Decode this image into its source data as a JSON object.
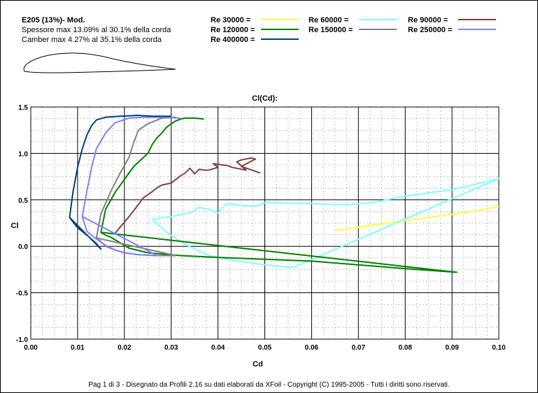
{
  "header": {
    "title": "E205  (13%)- Mod.",
    "thickness": "Spessore max 13.09% al 30.1% della corda",
    "camber": "Camber max 4.27% al 35.1% della corda"
  },
  "footer": "Pag 1 di 3  -   Disegnato da Profili 2.16 su dati elaborati da XFoil - Copyright (C) 1995-2005 - Tutti i diritti sono riservati.",
  "chart_data": {
    "type": "line",
    "title": "Cl(Cd):",
    "xlabel": "Cd",
    "ylabel": "Cl",
    "xlim": [
      0.0,
      0.1
    ],
    "ylim": [
      -1.0,
      1.5
    ],
    "grid": true,
    "xticks": [
      "0.00",
      "0.01",
      "0.02",
      "0.03",
      "0.04",
      "0.05",
      "0.06",
      "0.07",
      "0.08",
      "0.09",
      "0.10"
    ],
    "yticks": [
      "1.5",
      "1.0",
      "0.5",
      "0.0",
      "-0.5",
      "-1.0"
    ],
    "legend_placement": "top",
    "series": [
      {
        "name": "Re 30000 =",
        "color": "#ffff40",
        "x": [
          0.065,
          0.075,
          0.085,
          0.095,
          0.1
        ],
        "y": [
          0.17,
          0.24,
          0.31,
          0.38,
          0.43
        ]
      },
      {
        "name": "Re 60000 =",
        "color": "#80ffff",
        "x": [
          0.026,
          0.027,
          0.03,
          0.034,
          0.036,
          0.038,
          0.04,
          0.041,
          0.042,
          0.045,
          0.048,
          0.05,
          0.053,
          0.056,
          0.06,
          0.064,
          0.068,
          0.073,
          0.08,
          0.09,
          0.1,
          0.056,
          0.05,
          0.044,
          0.038,
          0.033,
          0.029,
          0.027,
          0.026
        ],
        "y": [
          0.29,
          0.3,
          0.32,
          0.36,
          0.42,
          0.4,
          0.36,
          0.42,
          0.46,
          0.44,
          0.43,
          0.47,
          0.47,
          0.46,
          0.46,
          0.45,
          0.45,
          0.47,
          0.54,
          0.61,
          0.73,
          -0.23,
          -0.2,
          -0.16,
          -0.1,
          0.02,
          0.15,
          0.24,
          0.29
        ]
      },
      {
        "name": "Re 90000 =",
        "color": "#804040",
        "x": [
          0.018,
          0.019,
          0.021,
          0.023,
          0.024,
          0.026,
          0.027,
          0.028,
          0.029,
          0.03,
          0.031,
          0.032,
          0.033,
          0.034,
          0.035,
          0.036,
          0.037,
          0.038,
          0.04,
          0.039,
          0.042,
          0.043,
          0.046,
          0.044,
          0.045,
          0.047,
          0.048,
          0.045,
          0.049
        ],
        "y": [
          0.14,
          0.2,
          0.32,
          0.45,
          0.52,
          0.59,
          0.63,
          0.66,
          0.67,
          0.68,
          0.72,
          0.76,
          0.79,
          0.84,
          0.78,
          0.83,
          0.82,
          0.82,
          0.85,
          0.89,
          0.87,
          0.85,
          0.82,
          0.91,
          0.93,
          0.95,
          0.94,
          0.86,
          0.79
        ]
      },
      {
        "name": "Re 120000 =",
        "color": "#008000",
        "x": [
          0.015,
          0.016,
          0.017,
          0.019,
          0.021,
          0.025,
          0.032,
          0.04,
          0.05,
          0.06,
          0.07,
          0.08,
          0.091,
          0.015,
          0.016,
          0.018,
          0.02,
          0.022,
          0.025,
          0.026,
          0.027,
          0.028,
          0.029,
          0.03,
          0.031,
          0.032,
          0.033,
          0.035,
          0.037
        ],
        "y": [
          0.15,
          0.12,
          0.1,
          0.04,
          -0.02,
          -0.07,
          -0.1,
          -0.12,
          -0.14,
          -0.16,
          -0.2,
          -0.24,
          -0.28,
          0.15,
          0.4,
          0.58,
          0.72,
          0.86,
          1.0,
          1.1,
          1.17,
          1.22,
          1.28,
          1.32,
          1.35,
          1.37,
          1.38,
          1.38,
          1.37
        ]
      },
      {
        "name": "Re 150000 =",
        "color": "#808080",
        "x": [
          0.014,
          0.015,
          0.016,
          0.018,
          0.02,
          0.023,
          0.027,
          0.031,
          0.014,
          0.015,
          0.017,
          0.019,
          0.021,
          0.022,
          0.023,
          0.025,
          0.028,
          0.031
        ],
        "y": [
          0.09,
          0.05,
          0.0,
          -0.04,
          -0.07,
          -0.09,
          -0.1,
          -0.1,
          0.09,
          0.35,
          0.58,
          0.78,
          0.96,
          1.12,
          1.25,
          1.32,
          1.38,
          1.39
        ]
      },
      {
        "name": "Re 250000 =",
        "color": "#8080ff",
        "x": [
          0.011,
          0.012,
          0.014,
          0.016,
          0.018,
          0.02,
          0.023,
          0.027,
          0.011,
          0.012,
          0.013,
          0.014,
          0.016,
          0.018,
          0.021,
          0.024,
          0.028,
          0.032
        ],
        "y": [
          0.32,
          0.16,
          0.08,
          0.01,
          -0.04,
          -0.07,
          -0.09,
          -0.1,
          0.32,
          0.6,
          0.85,
          1.05,
          1.22,
          1.33,
          1.38,
          1.39,
          1.39,
          1.38
        ]
      },
      {
        "name": "Re 400000 =",
        "color": "#004080",
        "x": [
          0.0083,
          0.0092,
          0.01,
          0.012,
          0.014,
          0.015,
          0.0083,
          0.009,
          0.01,
          0.011,
          0.012,
          0.013,
          0.014,
          0.016,
          0.019,
          0.023,
          0.026,
          0.03
        ],
        "y": [
          0.31,
          0.25,
          0.2,
          0.12,
          0.03,
          -0.03,
          0.31,
          0.58,
          0.85,
          1.05,
          1.2,
          1.3,
          1.36,
          1.39,
          1.4,
          1.41,
          1.4,
          1.4
        ]
      }
    ]
  }
}
